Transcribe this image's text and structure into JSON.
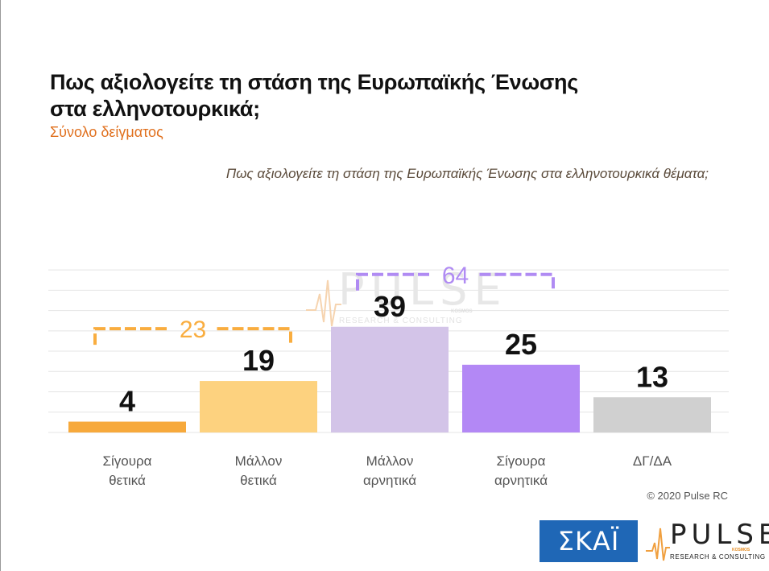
{
  "header": {
    "title_line1": "Πως αξιολογείτε τη στάση της Ευρωπαϊκής Ένωσης",
    "title_line2": "στα ελληνοτουρκικά;",
    "subtitle": "Σύνολο δείγματος"
  },
  "chart_question": "Πως αξιολογείτε τη στάση της Ευρωπαϊκής Ένωσης στα ελληνοτουρκικά θέματα;",
  "chart_data": {
    "type": "bar",
    "categories": [
      [
        "Σίγουρα",
        "θετικά"
      ],
      [
        "Μάλλον",
        "θετικά"
      ],
      [
        "Μάλλον",
        "αρνητικά"
      ],
      [
        "Σίγουρα",
        "αρνητικά"
      ],
      [
        "ΔΓ/ΔΑ"
      ]
    ],
    "values": [
      4,
      19,
      39,
      25,
      13
    ],
    "colors": [
      "#f7a93b",
      "#fdd27f",
      "#d3c4e8",
      "#b388f5",
      "#d0d0d0"
    ],
    "ylim": [
      0,
      60
    ],
    "grid": true,
    "brackets": [
      {
        "label": "23",
        "from": 0,
        "to": 1,
        "color": "#f9ad3f"
      },
      {
        "label": "64",
        "from": 2,
        "to": 3,
        "color": "#b08bf3"
      }
    ]
  },
  "watermark": {
    "name": "PULSE",
    "tagline": "RESEARCH & CONSULTING",
    "sub": "KOSMOS"
  },
  "copyright": "© 2020 Pulse RC",
  "logos": {
    "skai": "ΣΚΑΪ",
    "pulse": "PULSE",
    "pulse_tagline": "RESEARCH & CONSULTING",
    "pulse_sub": "KOSMOS"
  }
}
